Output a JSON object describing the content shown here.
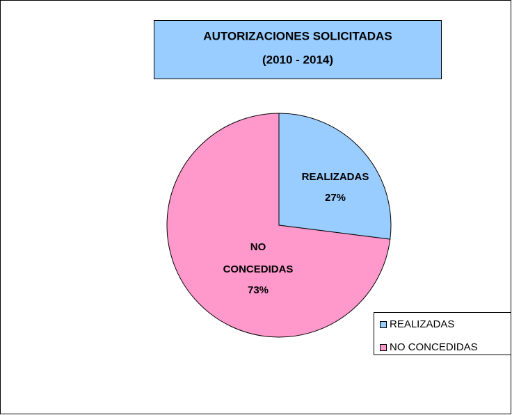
{
  "chart_data": {
    "type": "pie",
    "title": "AUTORIZACIONES SOLICITADAS",
    "subtitle": "(2010 - 2014)",
    "categories": [
      "REALIZADAS",
      "NO CONCEDIDAS"
    ],
    "values": [
      27,
      73
    ],
    "value_labels": [
      "27%",
      "73%"
    ],
    "colors": [
      "#99ccff",
      "#ff99cc"
    ],
    "legend": "right"
  }
}
